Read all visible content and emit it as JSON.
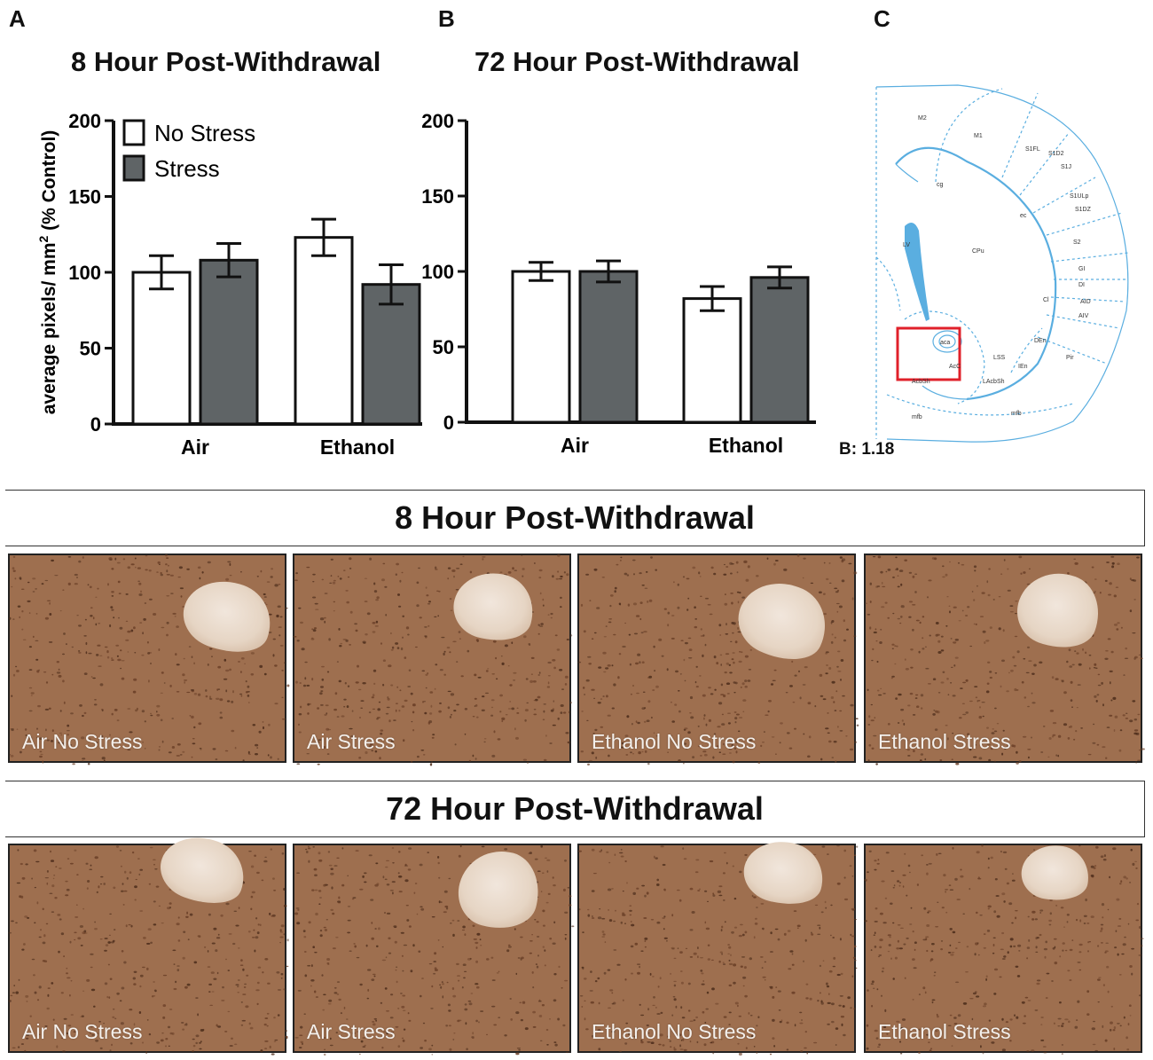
{
  "panels": {
    "a_letter": "A",
    "b_letter": "B",
    "c_letter": "C"
  },
  "chart_data": [
    {
      "type": "bar",
      "title": "8 Hour Post-Withdrawal",
      "ylabel": "average pixels/ mm",
      "ylabel_sup": "2",
      "ylabel_tail": " (% Control)",
      "xlabel": "",
      "categories": [
        "Air",
        "Ethanol"
      ],
      "ylim": [
        0,
        200
      ],
      "yticks": [
        0,
        50,
        100,
        150,
        200
      ],
      "series": [
        {
          "name": "No Stress",
          "values": [
            100,
            123
          ],
          "errors": [
            11,
            12
          ],
          "color": "#ffffff"
        },
        {
          "name": "Stress",
          "values": [
            108,
            92
          ],
          "errors": [
            11,
            13
          ],
          "color": "#5f6466"
        }
      ],
      "legend": "top-left"
    },
    {
      "type": "bar",
      "title": "72 Hour Post-Withdrawal",
      "xlabel": "",
      "categories": [
        "Air",
        "Ethanol"
      ],
      "ylim": [
        0,
        200
      ],
      "yticks": [
        0,
        50,
        100,
        150,
        200
      ],
      "series": [
        {
          "name": "No Stress",
          "values": [
            100,
            82
          ],
          "errors": [
            6,
            8
          ],
          "color": "#ffffff"
        },
        {
          "name": "Stress",
          "values": [
            100,
            96
          ],
          "errors": [
            7,
            7
          ],
          "color": "#5f6466"
        }
      ]
    }
  ],
  "atlas": {
    "bregma_label": "B: 1.18",
    "labels": [
      "M2",
      "M1",
      "S1FL",
      "S1D2",
      "S1J",
      "cg",
      "S1ULp",
      "S1DZ",
      "ec",
      "LV",
      "CPu",
      "S2",
      "GI",
      "DI",
      "AID",
      "Cl",
      "AIV",
      "aca",
      "LSS",
      "DEn",
      "AcC",
      "IEn",
      "Pir",
      "AcbSh",
      "LAcbSh",
      "mfb",
      "mfb"
    ],
    "line_color": "#5aaee0",
    "highlight_color": "#e0202a"
  },
  "micrographs": {
    "row1_banner": "8 Hour Post-Withdrawal",
    "row2_banner": "72 Hour Post-Withdrawal",
    "row1": [
      "Air No Stress",
      "Air Stress",
      "Ethanol No Stress",
      "Ethanol Stress"
    ],
    "row2": [
      "Air No Stress",
      "Air Stress",
      "Ethanol No Stress",
      "Ethanol Stress"
    ]
  }
}
